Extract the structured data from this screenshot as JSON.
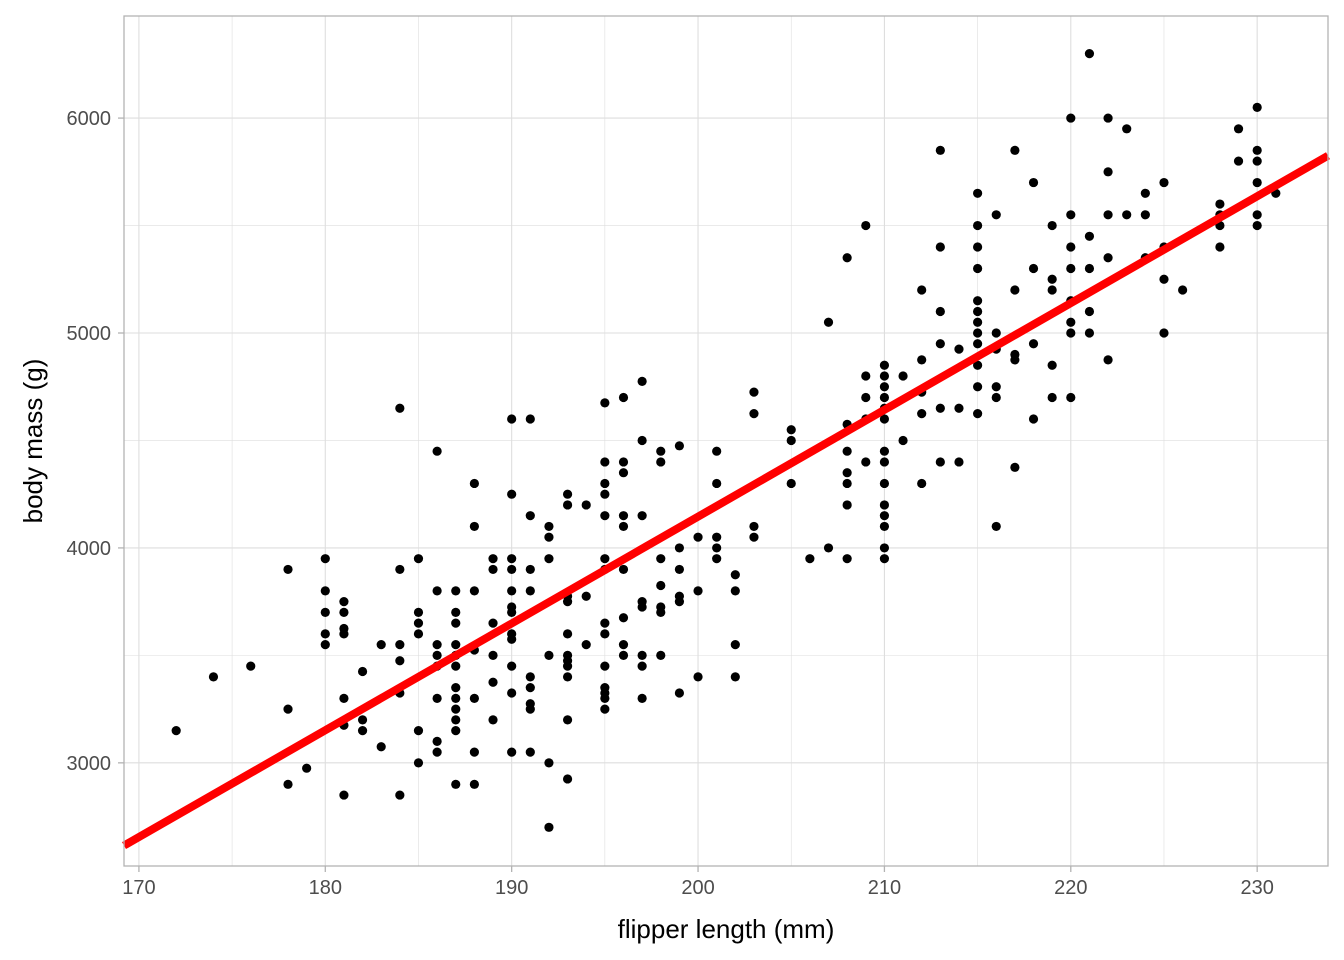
{
  "chart_data": {
    "type": "scatter",
    "xlabel": "flipper length (mm)",
    "ylabel": "body mass (g)",
    "xlim": [
      169.2,
      233.8
    ],
    "ylim": [
      2520,
      6475
    ],
    "x_ticks": [
      170,
      180,
      190,
      200,
      210,
      220,
      230
    ],
    "y_ticks": [
      3000,
      4000,
      5000,
      6000
    ],
    "x_tick_labels": [
      "170",
      "180",
      "190",
      "200",
      "210",
      "220",
      "230"
    ],
    "y_tick_labels": [
      "3000",
      "4000",
      "5000",
      "6000"
    ],
    "grid": true,
    "legend": "none",
    "colors": {
      "points": "#000000",
      "fit_line": "#ff0000",
      "grid": "#dedede",
      "border": "#b3b3b3"
    },
    "series": [
      {
        "type": "scatter",
        "points": [
          [
            172,
            3150
          ],
          [
            174,
            3400
          ],
          [
            176,
            3450
          ],
          [
            178,
            3900
          ],
          [
            178,
            3250
          ],
          [
            178,
            2900
          ],
          [
            179,
            2975
          ],
          [
            180,
            3950
          ],
          [
            180,
            3800
          ],
          [
            180,
            3700
          ],
          [
            180,
            3600
          ],
          [
            180,
            3550
          ],
          [
            181,
            3750
          ],
          [
            181,
            3700
          ],
          [
            181,
            3625
          ],
          [
            181,
            3600
          ],
          [
            181,
            3300
          ],
          [
            181,
            3175
          ],
          [
            181,
            2850
          ],
          [
            182,
            3425
          ],
          [
            182,
            3200
          ],
          [
            182,
            3150
          ],
          [
            183,
            3550
          ],
          [
            183,
            3075
          ],
          [
            184,
            4650
          ],
          [
            184,
            3900
          ],
          [
            184,
            3550
          ],
          [
            184,
            3475
          ],
          [
            184,
            3325
          ],
          [
            184,
            2850
          ],
          [
            185,
            3950
          ],
          [
            185,
            3700
          ],
          [
            185,
            3650
          ],
          [
            185,
            3600
          ],
          [
            185,
            3150
          ],
          [
            185,
            3000
          ],
          [
            186,
            4450
          ],
          [
            186,
            3800
          ],
          [
            186,
            3550
          ],
          [
            186,
            3500
          ],
          [
            186,
            3450
          ],
          [
            186,
            3300
          ],
          [
            186,
            3100
          ],
          [
            186,
            3050
          ],
          [
            187,
            3800
          ],
          [
            187,
            3700
          ],
          [
            187,
            3650
          ],
          [
            187,
            3550
          ],
          [
            187,
            3500
          ],
          [
            187,
            3450
          ],
          [
            187,
            3350
          ],
          [
            187,
            3300
          ],
          [
            187,
            3250
          ],
          [
            187,
            3200
          ],
          [
            187,
            3150
          ],
          [
            187,
            2900
          ],
          [
            188,
            4300
          ],
          [
            188,
            4100
          ],
          [
            188,
            3800
          ],
          [
            188,
            3525
          ],
          [
            188,
            3300
          ],
          [
            188,
            3050
          ],
          [
            188,
            2900
          ],
          [
            189,
            3950
          ],
          [
            189,
            3900
          ],
          [
            189,
            3650
          ],
          [
            189,
            3500
          ],
          [
            189,
            3375
          ],
          [
            189,
            3200
          ],
          [
            190,
            4600
          ],
          [
            190,
            4250
          ],
          [
            190,
            3950
          ],
          [
            190,
            3900
          ],
          [
            190,
            3800
          ],
          [
            190,
            3725
          ],
          [
            190,
            3700
          ],
          [
            190,
            3600
          ],
          [
            190,
            3575
          ],
          [
            190,
            3450
          ],
          [
            190,
            3325
          ],
          [
            190,
            3050
          ],
          [
            191,
            4600
          ],
          [
            191,
            4150
          ],
          [
            191,
            3900
          ],
          [
            191,
            3800
          ],
          [
            191,
            3400
          ],
          [
            191,
            3350
          ],
          [
            191,
            3275
          ],
          [
            191,
            3250
          ],
          [
            191,
            3050
          ],
          [
            192,
            4100
          ],
          [
            192,
            4050
          ],
          [
            192,
            3950
          ],
          [
            192,
            3500
          ],
          [
            192,
            3000
          ],
          [
            192,
            2700
          ],
          [
            193,
            4250
          ],
          [
            193,
            4200
          ],
          [
            193,
            3775
          ],
          [
            193,
            3750
          ],
          [
            193,
            3600
          ],
          [
            193,
            3500
          ],
          [
            193,
            3475
          ],
          [
            193,
            3450
          ],
          [
            193,
            3400
          ],
          [
            193,
            3200
          ],
          [
            193,
            2925
          ],
          [
            194,
            4200
          ],
          [
            194,
            3775
          ],
          [
            194,
            3550
          ],
          [
            195,
            4675
          ],
          [
            195,
            4400
          ],
          [
            195,
            4300
          ],
          [
            195,
            4250
          ],
          [
            195,
            4150
          ],
          [
            195,
            3950
          ],
          [
            195,
            3900
          ],
          [
            195,
            3650
          ],
          [
            195,
            3600
          ],
          [
            195,
            3450
          ],
          [
            195,
            3350
          ],
          [
            195,
            3325
          ],
          [
            195,
            3300
          ],
          [
            195,
            3250
          ],
          [
            196,
            4700
          ],
          [
            196,
            4400
          ],
          [
            196,
            4350
          ],
          [
            196,
            4150
          ],
          [
            196,
            4100
          ],
          [
            196,
            3900
          ],
          [
            196,
            3675
          ],
          [
            196,
            3550
          ],
          [
            196,
            3500
          ],
          [
            197,
            4775
          ],
          [
            197,
            4500
          ],
          [
            197,
            4150
          ],
          [
            197,
            3750
          ],
          [
            197,
            3725
          ],
          [
            197,
            3500
          ],
          [
            197,
            3450
          ],
          [
            197,
            3300
          ],
          [
            198,
            4450
          ],
          [
            198,
            4400
          ],
          [
            198,
            3950
          ],
          [
            198,
            3825
          ],
          [
            198,
            3725
          ],
          [
            198,
            3700
          ],
          [
            198,
            3500
          ],
          [
            199,
            4475
          ],
          [
            199,
            4000
          ],
          [
            199,
            3900
          ],
          [
            199,
            3775
          ],
          [
            199,
            3750
          ],
          [
            199,
            3325
          ],
          [
            200,
            4050
          ],
          [
            200,
            3800
          ],
          [
            200,
            3400
          ],
          [
            201,
            4450
          ],
          [
            201,
            4300
          ],
          [
            201,
            4050
          ],
          [
            201,
            4000
          ],
          [
            201,
            3950
          ],
          [
            202,
            3875
          ],
          [
            202,
            3800
          ],
          [
            202,
            3550
          ],
          [
            202,
            3400
          ],
          [
            203,
            4725
          ],
          [
            203,
            4625
          ],
          [
            203,
            4100
          ],
          [
            203,
            4050
          ],
          [
            205,
            4550
          ],
          [
            205,
            4500
          ],
          [
            205,
            4300
          ],
          [
            206,
            3950
          ],
          [
            207,
            5050
          ],
          [
            207,
            4000
          ],
          [
            208,
            5350
          ],
          [
            208,
            4575
          ],
          [
            208,
            4450
          ],
          [
            208,
            4350
          ],
          [
            208,
            4300
          ],
          [
            208,
            4200
          ],
          [
            208,
            3950
          ],
          [
            209,
            5500
          ],
          [
            209,
            4800
          ],
          [
            209,
            4700
          ],
          [
            209,
            4600
          ],
          [
            209,
            4400
          ],
          [
            210,
            4850
          ],
          [
            210,
            4800
          ],
          [
            210,
            4750
          ],
          [
            210,
            4700
          ],
          [
            210,
            4650
          ],
          [
            210,
            4600
          ],
          [
            210,
            4450
          ],
          [
            210,
            4400
          ],
          [
            210,
            4300
          ],
          [
            210,
            4200
          ],
          [
            210,
            4150
          ],
          [
            210,
            4100
          ],
          [
            210,
            4000
          ],
          [
            210,
            3950
          ],
          [
            211,
            4800
          ],
          [
            211,
            4500
          ],
          [
            212,
            5200
          ],
          [
            212,
            4875
          ],
          [
            212,
            4725
          ],
          [
            212,
            4625
          ],
          [
            212,
            4300
          ],
          [
            213,
            5850
          ],
          [
            213,
            5400
          ],
          [
            213,
            5100
          ],
          [
            213,
            4950
          ],
          [
            213,
            4650
          ],
          [
            213,
            4400
          ],
          [
            214,
            4925
          ],
          [
            214,
            4650
          ],
          [
            214,
            4400
          ],
          [
            215,
            5650
          ],
          [
            215,
            5500
          ],
          [
            215,
            5400
          ],
          [
            215,
            5300
          ],
          [
            215,
            5150
          ],
          [
            215,
            5100
          ],
          [
            215,
            5050
          ],
          [
            215,
            5000
          ],
          [
            215,
            4950
          ],
          [
            215,
            4850
          ],
          [
            215,
            4750
          ],
          [
            215,
            4625
          ],
          [
            216,
            5550
          ],
          [
            216,
            5000
          ],
          [
            216,
            4925
          ],
          [
            216,
            4750
          ],
          [
            216,
            4700
          ],
          [
            216,
            4100
          ],
          [
            217,
            5850
          ],
          [
            217,
            5200
          ],
          [
            217,
            4900
          ],
          [
            217,
            4875
          ],
          [
            217,
            4375
          ],
          [
            218,
            5700
          ],
          [
            218,
            5300
          ],
          [
            218,
            4950
          ],
          [
            218,
            4600
          ],
          [
            219,
            5500
          ],
          [
            219,
            5250
          ],
          [
            219,
            5200
          ],
          [
            219,
            4850
          ],
          [
            219,
            4700
          ],
          [
            220,
            6000
          ],
          [
            220,
            5550
          ],
          [
            220,
            5400
          ],
          [
            220,
            5300
          ],
          [
            220,
            5150
          ],
          [
            220,
            5050
          ],
          [
            220,
            5000
          ],
          [
            220,
            4700
          ],
          [
            221,
            6300
          ],
          [
            221,
            5450
          ],
          [
            221,
            5300
          ],
          [
            221,
            5100
          ],
          [
            221,
            5000
          ],
          [
            222,
            6000
          ],
          [
            222,
            5750
          ],
          [
            222,
            5550
          ],
          [
            222,
            5350
          ],
          [
            222,
            4875
          ],
          [
            223,
            5950
          ],
          [
            223,
            5550
          ],
          [
            224,
            5650
          ],
          [
            224,
            5550
          ],
          [
            224,
            5350
          ],
          [
            225,
            5700
          ],
          [
            225,
            5400
          ],
          [
            225,
            5250
          ],
          [
            225,
            5000
          ],
          [
            226,
            5200
          ],
          [
            228,
            5600
          ],
          [
            228,
            5550
          ],
          [
            228,
            5500
          ],
          [
            228,
            5400
          ],
          [
            229,
            5950
          ],
          [
            229,
            5800
          ],
          [
            230,
            6050
          ],
          [
            230,
            5850
          ],
          [
            230,
            5800
          ],
          [
            230,
            5700
          ],
          [
            230,
            5550
          ],
          [
            230,
            5500
          ],
          [
            231,
            5650
          ]
        ]
      },
      {
        "type": "line",
        "x": [
          169.2,
          233.8
        ],
        "y": [
          2615,
          5825
        ]
      }
    ]
  }
}
